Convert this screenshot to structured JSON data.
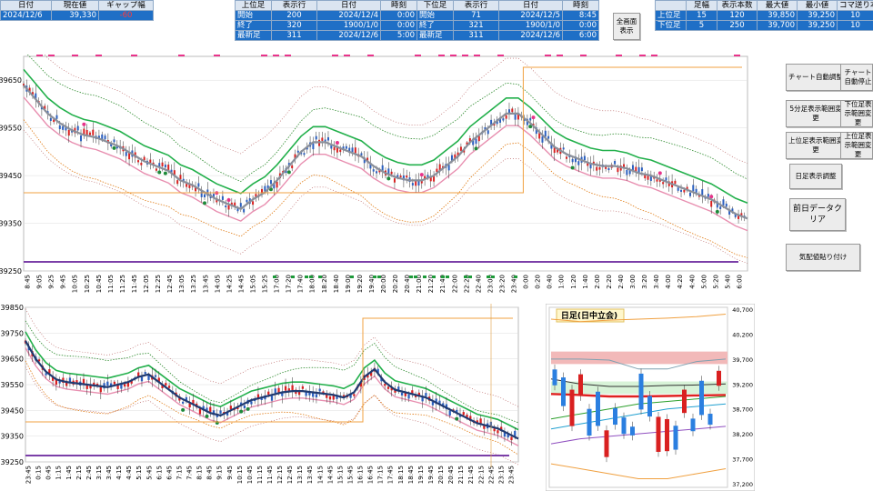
{
  "quote": {
    "headers": [
      "日付",
      "現在値",
      "ギャップ幅"
    ],
    "values": [
      "2024/12/6",
      "39,330",
      "-60"
    ]
  },
  "upper_bar": {
    "headers": [
      "上位足",
      "表示行",
      "日付",
      "時刻"
    ],
    "rows": [
      [
        "開始",
        "200",
        "2024/12/4",
        "0:00"
      ],
      [
        "終了",
        "320",
        "1900/1/0",
        "0:00"
      ],
      [
        "最新足",
        "311",
        "2024/12/6",
        "5:00"
      ]
    ]
  },
  "lower_bar": {
    "headers": [
      "下位足",
      "表示行",
      "日付",
      "時刻"
    ],
    "rows": [
      [
        "開始",
        "71",
        "2024/12/5",
        "8:45"
      ],
      [
        "終了",
        "321",
        "1900/1/0",
        "0:00"
      ],
      [
        "最新足",
        "311",
        "2024/12/6",
        "6:00"
      ]
    ]
  },
  "fullscreen_button": "全画面表示",
  "summary": {
    "headers": [
      "",
      "足幅",
      "表示本数",
      "最大値",
      "最小値",
      "コマ送り本"
    ],
    "rows": [
      [
        "上位足",
        "15",
        "120",
        "39,850",
        "39,250",
        "10"
      ],
      [
        "下位足",
        "5",
        "250",
        "39,700",
        "39,250",
        "10"
      ]
    ]
  },
  "side_buttons": {
    "auto_adjust": "チャート自動調整",
    "auto_stop": "チャート自動停止",
    "five_min_range": "5分足表示範囲変更",
    "lower_range": "下位足表示範囲変更",
    "upper_range": "上位足表示範囲変更",
    "upper_range2": "上位足表示範囲変更",
    "daily_adjust": "日足表示調整",
    "prev_day": "前日データクリア",
    "order_book": "気配値貼り付け"
  },
  "chart_data": [
    {
      "type": "line",
      "ylim": [
        39250,
        39700
      ],
      "yticks": [
        "39650",
        "39550",
        "39450",
        "39350",
        "39250"
      ],
      "xticks": [
        "8:45",
        "9:05",
        "9:25",
        "9:45",
        "10:05",
        "10:25",
        "10:45",
        "11:05",
        "11:25",
        "11:45",
        "12:05",
        "12:25",
        "12:45",
        "13:05",
        "13:25",
        "13:45",
        "14:05",
        "14:25",
        "14:45",
        "15:05",
        "15:25",
        "17:00",
        "17:20",
        "17:40",
        "18:00",
        "18:20",
        "18:40",
        "19:00",
        "19:20",
        "19:40",
        "20:00",
        "20:20",
        "20:40",
        "21:00",
        "21:20",
        "21:40",
        "22:00",
        "22:20",
        "22:40",
        "23:00",
        "23:20",
        "23:40",
        "0:00",
        "0:20",
        "0:40",
        "1:00",
        "1:20",
        "1:40",
        "2:00",
        "2:20",
        "2:40",
        "3:00",
        "3:20",
        "3:40",
        "4:00",
        "4:20",
        "4:40",
        "5:00",
        "5:20",
        "5:40",
        "6:00"
      ],
      "series": [
        {
          "values": [
            39640,
            39610,
            39580,
            39560,
            39545,
            39535,
            39530,
            39520,
            39510,
            39495,
            39480,
            39470,
            39460,
            39440,
            39430,
            39415,
            39400,
            39390,
            39380,
            39400,
            39415,
            39440,
            39470,
            39500,
            39520,
            39520,
            39510,
            39500,
            39490,
            39470,
            39455,
            39445,
            39440,
            39440,
            39450,
            39470,
            39490,
            39520,
            39540,
            39560,
            39580,
            39580,
            39560,
            39535,
            39510,
            39495,
            39485,
            39475,
            39470,
            39470,
            39465,
            39455,
            39450,
            39440,
            39430,
            39420,
            39410,
            39400,
            39385,
            39370,
            39360
          ]
        }
      ]
    },
    {
      "type": "line",
      "ylim": [
        39250,
        39850
      ],
      "yticks": [
        "39850",
        "39750",
        "39650",
        "39550",
        "39450",
        "39350",
        "39250"
      ],
      "xticks": [
        "23:45",
        "0:15",
        "0:45",
        "1:15",
        "1:45",
        "2:15",
        "2:45",
        "3:15",
        "3:45",
        "4:15",
        "4:45",
        "5:15",
        "5:45",
        "6:15",
        "6:45",
        "7:15",
        "7:45",
        "8:15",
        "8:45",
        "9:15",
        "9:45",
        "10:15",
        "10:45",
        "11:15",
        "11:45",
        "12:15",
        "12:45",
        "13:15",
        "13:45",
        "14:15",
        "14:45",
        "15:15",
        "15:45",
        "16:15",
        "16:45",
        "17:15",
        "17:45",
        "18:15",
        "18:45",
        "19:15",
        "19:45",
        "20:15",
        "20:45",
        "21:15",
        "21:45",
        "22:15",
        "22:45",
        "23:15",
        "23:45"
      ],
      "series": [
        {
          "values": [
            39720,
            39650,
            39600,
            39570,
            39560,
            39555,
            39550,
            39545,
            39540,
            39550,
            39560,
            39580,
            39590,
            39560,
            39530,
            39500,
            39480,
            39460,
            39440,
            39430,
            39450,
            39470,
            39490,
            39500,
            39510,
            39520,
            39525,
            39525,
            39520,
            39515,
            39510,
            39500,
            39520,
            39580,
            39610,
            39560,
            39530,
            39520,
            39510,
            39500,
            39480,
            39460,
            39440,
            39420,
            39400,
            39390,
            39380,
            39360,
            39340
          ]
        }
      ]
    },
    {
      "type": "line",
      "title": "日足(日中立会)",
      "ylim": [
        37200,
        40700
      ],
      "yticks": [
        "40,700",
        "40,200",
        "39,700",
        "39,200",
        "38,700",
        "38,200",
        "37,700",
        "37,200"
      ]
    }
  ]
}
